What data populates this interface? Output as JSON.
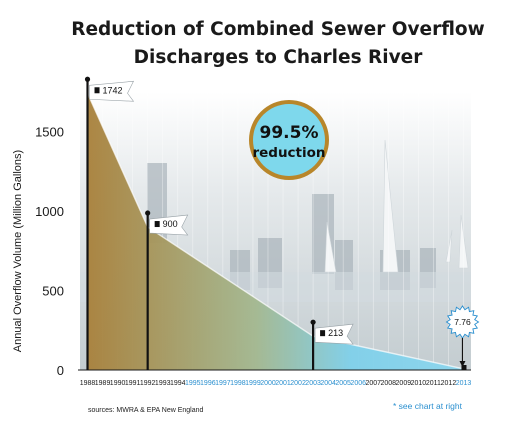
{
  "title_line1": "Reduction of Combined Sewer Overflow",
  "title_line2": "Discharges to Charles River",
  "source_note": "sources: MWRA & EPA New England",
  "footnote": "* see chart at right",
  "chart_data": {
    "type": "area",
    "ylabel": "Annual Overflow Volume (Million Gallons)",
    "ylim": [
      0,
      1750
    ],
    "yticks": [
      0,
      500,
      1000,
      1500
    ],
    "xlim": [
      1987.5,
      2013.5
    ],
    "categories": [
      "1988",
      "1989",
      "1990",
      "1991",
      "1992",
      "1993",
      "1994",
      "1995",
      "1996",
      "1997",
      "1998",
      "1999",
      "2000",
      "2001",
      "2002",
      "2003",
      "2004",
      "2005",
      "2006",
      "2007",
      "2008",
      "2009",
      "2010",
      "2011",
      "2012",
      "2013"
    ],
    "category_colors": [
      "#1a1a1a",
      "#1a1a1a",
      "#1a1a1a",
      "#1a1a1a",
      "#1a1a1a",
      "#1a1a1a",
      "#1a1a1a",
      "#2a8fcf",
      "#2a8fcf",
      "#2a8fcf",
      "#2a8fcf",
      "#2a8fcf",
      "#2a8fcf",
      "#2a8fcf",
      "#2a8fcf",
      "#2a8fcf",
      "#2a8fcf",
      "#2a8fcf",
      "#2a8fcf",
      "#1a1a1a",
      "#1a1a1a",
      "#1a1a1a",
      "#1a1a1a",
      "#1a1a1a",
      "#1a1a1a",
      "#2a8fcf"
    ],
    "series": [
      {
        "x": [
          1988,
          1992,
          2003,
          2013
        ],
        "values": [
          1742,
          900,
          213,
          7.76
        ]
      }
    ],
    "data_labels": [
      "1742",
      "900",
      "213",
      "7.76"
    ],
    "badge": {
      "line1": "99.5%",
      "line2": "reduction",
      "fill": "#7ed8ec",
      "ring": "#b8862a"
    },
    "colors": {
      "area_start": "#a8803a",
      "area_end": "#8ad6ee"
    }
  }
}
